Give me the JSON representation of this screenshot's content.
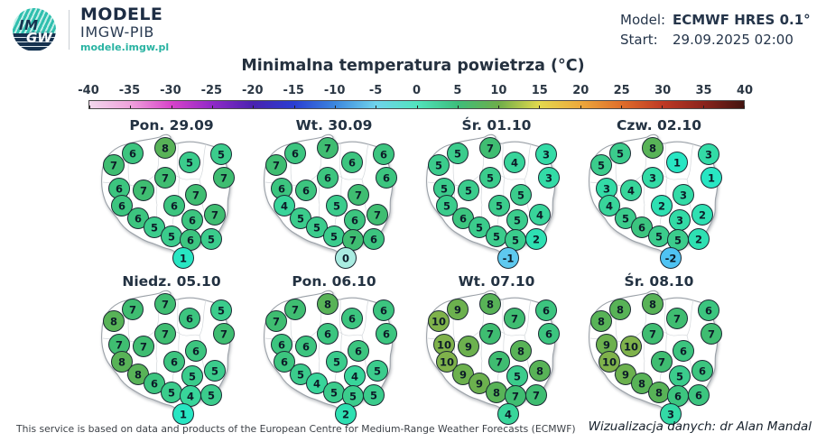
{
  "header": {
    "logo_line1": "IM",
    "logo_line2": "GW",
    "brand_title": "MODELE",
    "brand_subtitle": "IMGW-PIB",
    "brand_url": "modele.imgw.pl",
    "model_label": "Model:",
    "model_value": "ECMWF HRES 0.1°",
    "start_label": "Start:",
    "start_value": "29.09.2025 02:00"
  },
  "title": "Minimalna temperatura powietrza (°C)",
  "colorbar": {
    "ticks": [
      "-40",
      "-35",
      "-30",
      "-25",
      "-20",
      "-15",
      "-10",
      "-5",
      "0",
      "5",
      "10",
      "15",
      "20",
      "25",
      "30",
      "35",
      "40"
    ],
    "gradient": [
      "#F2D7EC",
      "#EFA3DC",
      "#D844CA",
      "#9129C7",
      "#4A22B0",
      "#2A3ED2",
      "#3C86DE",
      "#6FD3EC",
      "#52E4BE",
      "#3DBE7B",
      "#6EAE49",
      "#E3D94E",
      "#EDA93C",
      "#DF6E2B",
      "#BF3A24",
      "#8C241C",
      "#431410"
    ]
  },
  "chart_data": {
    "type": "heatmap",
    "variable": "Minimalna temperatura powietrza",
    "unit": "°C",
    "model": "ECMWF HRES 0.1°",
    "run_start": "29.09.2025 02:00",
    "colorbar_range": [
      -40,
      40
    ],
    "colorbar_step": 5,
    "positions": [
      [
        62,
        40
      ],
      [
        98,
        34
      ],
      [
        125,
        50
      ],
      [
        160,
        41
      ],
      [
        41,
        53
      ],
      [
        98,
        67
      ],
      [
        163,
        67
      ],
      [
        47,
        79
      ],
      [
        74,
        81
      ],
      [
        132,
        86
      ],
      [
        50,
        98
      ],
      [
        108,
        98
      ],
      [
        68,
        112
      ],
      [
        128,
        114
      ],
      [
        153,
        108
      ],
      [
        86,
        122
      ],
      [
        105,
        132
      ],
      [
        126,
        136
      ],
      [
        149,
        135
      ],
      [
        118,
        156
      ]
    ],
    "value_colors": {
      "-2": "#4FC3F3",
      "-1": "#5EC9EF",
      "0": "#A9ECE1",
      "1": "#28E6C3",
      "2": "#2EE0B2",
      "3": "#33DBA6",
      "4": "#38D59A",
      "5": "#3BCC8C",
      "6": "#3CC57F",
      "7": "#3FBD71",
      "8": "#58B357",
      "9": "#6CB14E",
      "10": "#7FB24B"
    },
    "maps": [
      {
        "label": "Pon. 29.09",
        "values": [
          6,
          8,
          5,
          5,
          7,
          7,
          7,
          6,
          7,
          7,
          6,
          6,
          6,
          6,
          7,
          5,
          5,
          6,
          5,
          1
        ]
      },
      {
        "label": "Wt. 30.09",
        "values": [
          6,
          7,
          6,
          6,
          7,
          6,
          6,
          6,
          6,
          7,
          4,
          5,
          5,
          6,
          7,
          5,
          5,
          7,
          6,
          0
        ]
      },
      {
        "label": "Śr. 01.10",
        "values": [
          5,
          7,
          4,
          3,
          5,
          5,
          3,
          5,
          5,
          5,
          5,
          5,
          6,
          5,
          4,
          5,
          5,
          5,
          2,
          -1
        ]
      },
      {
        "label": "Czw. 02.10",
        "values": [
          5,
          8,
          1,
          3,
          5,
          3,
          1,
          3,
          4,
          3,
          4,
          2,
          5,
          3,
          2,
          6,
          5,
          5,
          2,
          -2
        ]
      },
      {
        "label": "Niedz. 05.10",
        "values": [
          7,
          7,
          6,
          5,
          8,
          7,
          7,
          7,
          7,
          6,
          8,
          6,
          8,
          5,
          5,
          6,
          5,
          4,
          5,
          1
        ]
      },
      {
        "label": "Pon. 06.10",
        "values": [
          7,
          8,
          6,
          6,
          7,
          6,
          6,
          6,
          6,
          6,
          6,
          5,
          5,
          4,
          5,
          4,
          5,
          5,
          5,
          2
        ]
      },
      {
        "label": "Wt. 07.10",
        "values": [
          9,
          8,
          7,
          6,
          10,
          7,
          6,
          10,
          9,
          8,
          10,
          7,
          9,
          5,
          8,
          9,
          8,
          7,
          7,
          4
        ]
      },
      {
        "label": "Śr. 08.10",
        "values": [
          8,
          8,
          7,
          6,
          8,
          7,
          7,
          9,
          10,
          6,
          10,
          7,
          9,
          5,
          6,
          8,
          8,
          6,
          6,
          3
        ]
      }
    ]
  },
  "footer": {
    "left": "This service is based on data and products of the European Centre for Medium-Range Weather Forecasts (ECMWF)",
    "right": "Wizualizacja danych: dr Alan Mandal"
  }
}
